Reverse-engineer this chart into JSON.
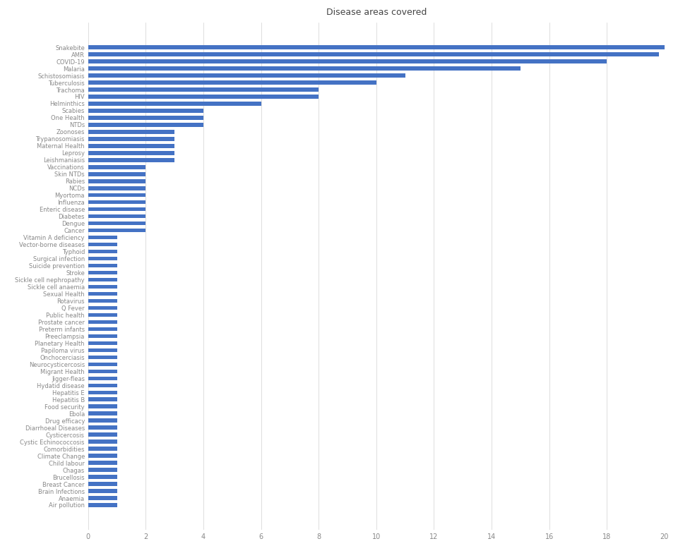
{
  "title": "Disease areas covered",
  "bar_color": "#4472C4",
  "categories": [
    "Snakebite",
    "AMR",
    "COVID-19",
    "Malaria",
    "Schistosomiasis",
    "Tuberculosis",
    "Trachoma",
    "HIV",
    "Helminthics",
    "Scabies",
    "One Health",
    "NTDs",
    "Zoonoses",
    "Trypanosomiasis",
    "Maternal Health",
    "Leprosy",
    "Leishmaniasis",
    "Vaccinations",
    "Skin NTDs",
    "Rabies",
    "NCDs",
    "Myortoma",
    "Influenza",
    "Enteric disease",
    "Diabetes",
    "Dengue",
    "Cancer",
    "Vitamin A deficiency",
    "Vector-borne diseases",
    "Typhoid",
    "Surgical infection",
    "Suicide prevention",
    "Stroke",
    "Sickle cell nephropathy",
    "Sickle cell anaemia",
    "Sexual Health",
    "Rotavirus",
    "Q Fever",
    "Public health",
    "Prostate cancer",
    "Preterm infants",
    "Preeclampsia",
    "Planetary Health",
    "Papiloma virus",
    "Onchocerciasis",
    "Neurocysticercosis",
    "Migrant Health",
    "Jigger-fleas",
    "Hydatid disease",
    "Hepatitis E",
    "Hepatitis B",
    "Food security",
    "Ebola",
    "Drug efficacy",
    "Diarrhoeal Diseases",
    "Cysticercosis",
    "Cystic Echinococcosis",
    "Comorbidities",
    "Climate Change",
    "Child labour",
    "Chagas",
    "Brucellosis",
    "Breast Cancer",
    "Brain Infections",
    "Anaemia",
    "Air pollution"
  ],
  "values": [
    20,
    19.8,
    18,
    15,
    11,
    10,
    8,
    8,
    6,
    4,
    4,
    4,
    3,
    3,
    3,
    3,
    3,
    2,
    2,
    2,
    2,
    2,
    2,
    2,
    2,
    2,
    2,
    1,
    1,
    1,
    1,
    1,
    1,
    1,
    1,
    1,
    1,
    1,
    1,
    1,
    1,
    1,
    1,
    1,
    1,
    1,
    1,
    1,
    1,
    1,
    1,
    1,
    1,
    1,
    1,
    1,
    1,
    1,
    1,
    1,
    1,
    1,
    1,
    1,
    1,
    1
  ],
  "xlim": [
    0,
    20
  ],
  "xticks": [
    0,
    2,
    4,
    6,
    8,
    10,
    12,
    14,
    16,
    18,
    20
  ],
  "grid_color": "#d0d0d0",
  "background_color": "#ffffff",
  "title_fontsize": 9,
  "label_fontsize": 6,
  "tick_fontsize": 7,
  "bar_height": 0.55
}
